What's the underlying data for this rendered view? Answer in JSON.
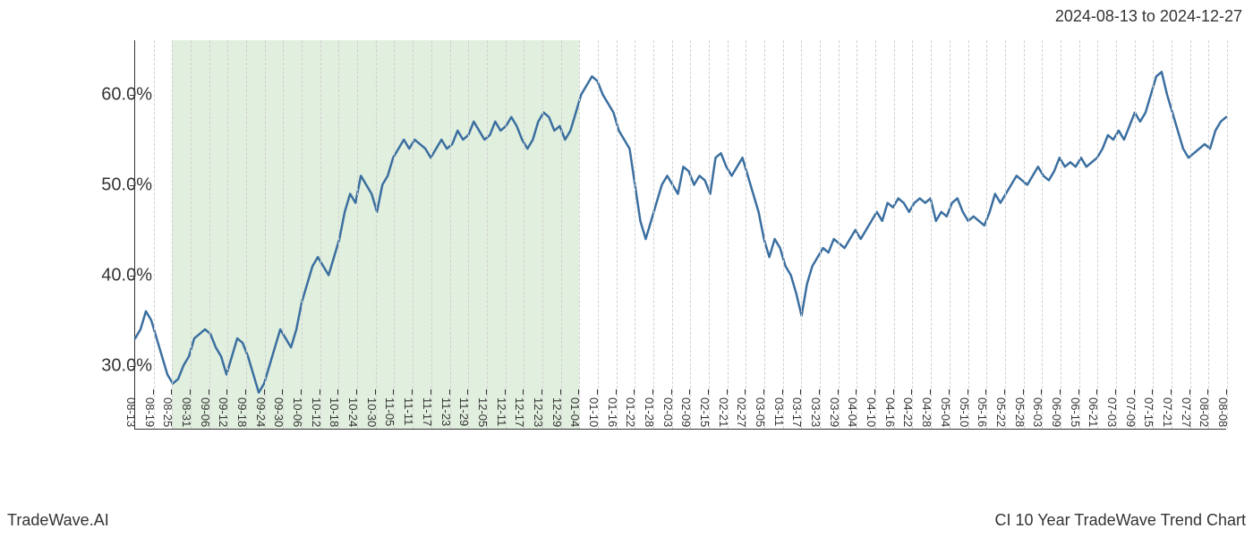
{
  "header": {
    "date_range": "2024-08-13 to 2024-12-27"
  },
  "footer": {
    "left": "TradeWave.AI",
    "right": "CI 10 Year TradeWave Trend Chart"
  },
  "chart": {
    "type": "line",
    "background_color": "#ffffff",
    "plot_border_color": "#333333",
    "grid_color": "#d0d0d0",
    "grid_dash": "dashed",
    "highlight": {
      "start_index": 2,
      "end_index": 24,
      "fill": "#d4e8d0",
      "opacity": 0.7
    },
    "line": {
      "color": "#3b6fa0",
      "width": 2.5
    },
    "y_axis": {
      "min": 23,
      "max": 66,
      "ticks": [
        30,
        40,
        50,
        60
      ],
      "tick_labels": [
        "30.0%",
        "40.0%",
        "50.0%",
        "60.0%"
      ],
      "label_fontsize": 20,
      "label_color": "#333333"
    },
    "x_axis": {
      "categories": [
        "08-13",
        "08-19",
        "08-25",
        "08-31",
        "09-06",
        "09-12",
        "09-18",
        "09-24",
        "09-30",
        "10-06",
        "10-12",
        "10-18",
        "10-24",
        "10-30",
        "11-05",
        "11-11",
        "11-17",
        "11-23",
        "11-29",
        "12-05",
        "12-11",
        "12-17",
        "12-23",
        "12-29",
        "01-04",
        "01-10",
        "01-16",
        "01-22",
        "01-28",
        "02-03",
        "02-09",
        "02-15",
        "02-21",
        "02-27",
        "03-05",
        "03-11",
        "03-17",
        "03-23",
        "03-29",
        "04-04",
        "04-10",
        "04-16",
        "04-22",
        "04-28",
        "05-04",
        "05-10",
        "05-16",
        "05-22",
        "05-28",
        "06-03",
        "06-09",
        "06-15",
        "06-21",
        "07-03",
        "07-09",
        "07-15",
        "07-21",
        "07-27",
        "08-02",
        "08-08"
      ],
      "label_fontsize": 13,
      "label_color": "#333333",
      "rotation": 90
    },
    "series": {
      "values": [
        33,
        34,
        36,
        35,
        33,
        31,
        29,
        28,
        28.5,
        30,
        31,
        33,
        33.5,
        34,
        33.5,
        32,
        31,
        29,
        31,
        33,
        32.5,
        31,
        29,
        27,
        28,
        30,
        32,
        34,
        33,
        32,
        34,
        37,
        39,
        41,
        42,
        41,
        40,
        42,
        44,
        47,
        49,
        48,
        51,
        50,
        49,
        47,
        50,
        51,
        53,
        54,
        55,
        54,
        55,
        54.5,
        54,
        53,
        54,
        55,
        54,
        54.5,
        56,
        55,
        55.5,
        57,
        56,
        55,
        55.5,
        57,
        56,
        56.5,
        57.5,
        56.5,
        55,
        54,
        55,
        57,
        58,
        57.5,
        56,
        56.5,
        55,
        56,
        58,
        60,
        61,
        62,
        61.5,
        60,
        59,
        58,
        56,
        55,
        54,
        50,
        46,
        44,
        46,
        48,
        50,
        51,
        50,
        49,
        52,
        51.5,
        50,
        51,
        50.5,
        49,
        53,
        53.5,
        52,
        51,
        52,
        53,
        51,
        49,
        47,
        44,
        42,
        44,
        43,
        41,
        40,
        38,
        35.5,
        39,
        41,
        42,
        43,
        42.5,
        44,
        43.5,
        43,
        44,
        45,
        44,
        45,
        46,
        47,
        46,
        48,
        47.5,
        48.5,
        48,
        47,
        48,
        48.5,
        48,
        48.5,
        46,
        47,
        46.5,
        48,
        48.5,
        47,
        46,
        46.5,
        46,
        45.5,
        47,
        49,
        48,
        49,
        50,
        51,
        50.5,
        50,
        51,
        52,
        51,
        50.5,
        51.5,
        53,
        52,
        52.5,
        52,
        53,
        52,
        52.5,
        53,
        54,
        55.5,
        55,
        56,
        55,
        56.5,
        58,
        57,
        58,
        60,
        62,
        62.5,
        60,
        58,
        56,
        54,
        53,
        53.5,
        54,
        54.5,
        54,
        56,
        57,
        57.5
      ]
    },
    "title_fontsize": 18,
    "footer_fontsize": 18
  }
}
